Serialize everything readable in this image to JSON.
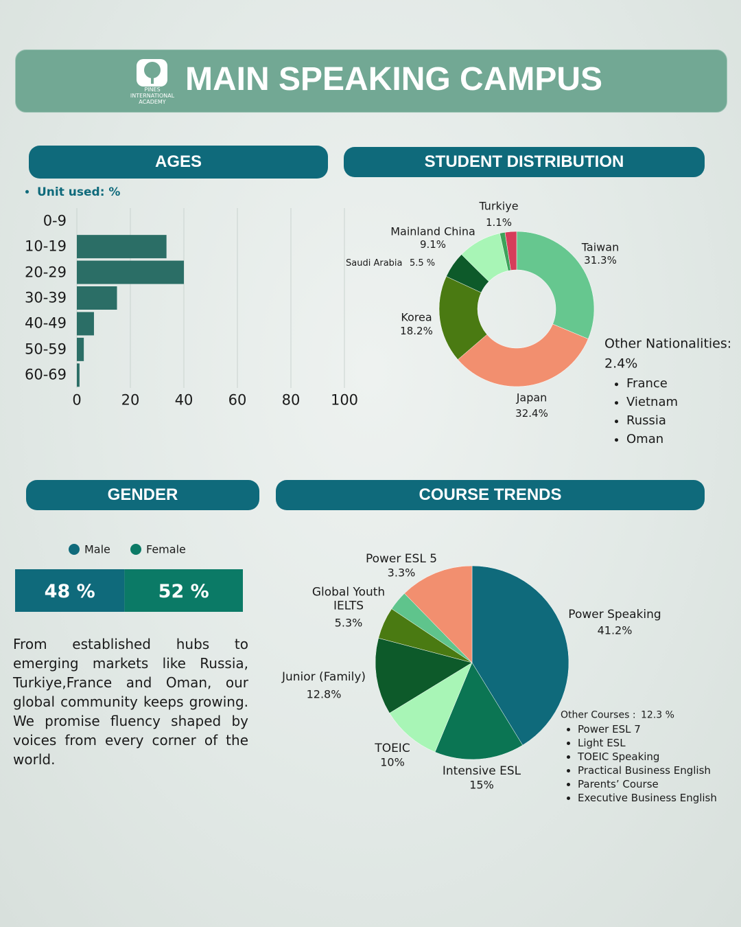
{
  "header": {
    "logo_text": "PINES INTERNATIONAL ACADEMY",
    "title": "MAIN SPEAKING CAMPUS"
  },
  "chart_data": [
    {
      "type": "bar",
      "orientation": "horizontal",
      "title": "AGES",
      "note": "Unit used: %",
      "categories": [
        "0-9",
        "10-19",
        "20-29",
        "30-39",
        "40-49",
        "50-59",
        "60-69"
      ],
      "values": [
        0,
        33.5,
        40,
        15,
        6.4,
        2.6,
        1
      ],
      "xlim": [
        0,
        100
      ],
      "xticks": [
        0,
        20,
        40,
        60,
        80,
        100
      ],
      "grid": true,
      "color": "#2b6e66"
    },
    {
      "type": "donut",
      "title": "STUDENT DISTRIBUTION",
      "categories": [
        "Taiwan",
        "Japan",
        "Korea",
        "Saudi Arabia",
        "Mainland China",
        "Turkiye",
        "Other Nationalities:"
      ],
      "values": [
        31.3,
        32.4,
        18.2,
        5.5,
        9.1,
        1.1,
        2.4
      ],
      "value_labels": [
        "31.3%",
        "32.4%",
        "18.2%",
        "5.5 %",
        "9.1%",
        "1.1%",
        "2.4%"
      ],
      "colors": [
        "#66c78f",
        "#f28f6f",
        "#4a7a12",
        "#0d5a2a",
        "#a8f5b6",
        "#3da35a",
        "#d63d5a"
      ],
      "other_list": [
        "France",
        "Vietnam",
        "Russia",
        "Oman"
      ]
    },
    {
      "type": "stacked_bar",
      "title": "GENDER",
      "series": [
        {
          "name": "Male",
          "color": "#0f6a7b",
          "values": [
            48
          ],
          "value_labels": [
            "48 %"
          ]
        },
        {
          "name": "Female",
          "color": "#0b7a66",
          "values": [
            52
          ],
          "value_labels": [
            "52 %"
          ]
        }
      ]
    },
    {
      "type": "pie",
      "title": "COURSE TRENDS",
      "categories": [
        "Power Speaking",
        "Intensive ESL",
        "TOEIC",
        "Junior (Family)",
        "Global Youth IELTS",
        "Power ESL 5",
        "Other Courses :"
      ],
      "values": [
        41.2,
        15,
        10,
        12.8,
        5.3,
        3.3,
        12.3
      ],
      "value_labels": [
        "41.2%",
        "15%",
        "10%",
        "12.8%",
        "5.3%",
        "3.3%",
        "12.3 %"
      ],
      "colors": [
        "#0f6a7b",
        "#0b7553",
        "#a8f5b6",
        "#0d5a2a",
        "#4a7a12",
        "#5fc48c",
        "#f28f6f"
      ],
      "other_list": [
        "Power ESL 7",
        "Light ESL",
        "TOEIC Speaking",
        "Practical Business English",
        "Parents’ Course",
        "Executive Business English"
      ]
    }
  ],
  "paragraph": "From established hubs to emerging markets like Russia, Turkiye,France and Oman, our global community keeps growing. We promise fluency shaped by voices from every corner of the world."
}
